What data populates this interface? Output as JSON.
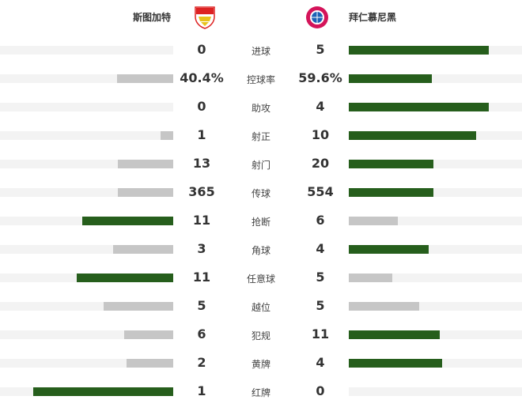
{
  "home": {
    "name": "斯图加特",
    "logo": "vfb-stuttgart-crest"
  },
  "away": {
    "name": "拜仁慕尼黑",
    "logo": "fc-bayern-crest"
  },
  "colors": {
    "leader": "#265e1c",
    "trailer": "#c6c6c6",
    "track": "#f3f3f3"
  },
  "stats": [
    {
      "label": "进球",
      "home": "0",
      "away": "5",
      "h": 0,
      "a": 5
    },
    {
      "label": "控球率",
      "home": "40.4%",
      "away": "59.6%",
      "h": 40.4,
      "a": 59.6
    },
    {
      "label": "助攻",
      "home": "0",
      "away": "4",
      "h": 0,
      "a": 4
    },
    {
      "label": "射正",
      "home": "1",
      "away": "10",
      "h": 1,
      "a": 10
    },
    {
      "label": "射门",
      "home": "13",
      "away": "20",
      "h": 13,
      "a": 20
    },
    {
      "label": "传球",
      "home": "365",
      "away": "554",
      "h": 365,
      "a": 554
    },
    {
      "label": "抢断",
      "home": "11",
      "away": "6",
      "h": 11,
      "a": 6
    },
    {
      "label": "角球",
      "home": "3",
      "away": "4",
      "h": 3,
      "a": 4
    },
    {
      "label": "任意球",
      "home": "11",
      "away": "5",
      "h": 11,
      "a": 5
    },
    {
      "label": "越位",
      "home": "5",
      "away": "5",
      "h": 5,
      "a": 5
    },
    {
      "label": "犯规",
      "home": "6",
      "away": "11",
      "h": 6,
      "a": 11
    },
    {
      "label": "黄牌",
      "home": "2",
      "away": "4",
      "h": 2,
      "a": 4
    },
    {
      "label": "红牌",
      "home": "1",
      "away": "0",
      "h": 1,
      "a": 0
    }
  ]
}
